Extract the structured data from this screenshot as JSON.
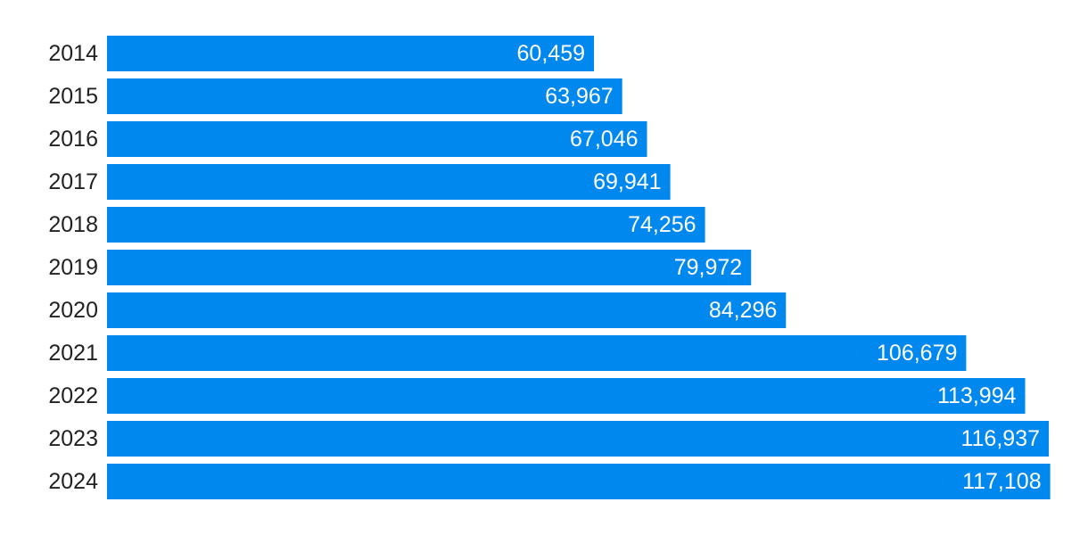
{
  "chart_data": {
    "type": "bar",
    "orientation": "horizontal",
    "title": "",
    "xlabel": "",
    "ylabel": "",
    "grid": false,
    "bar_color": "#0088ee",
    "categories": [
      "2014",
      "2015",
      "2016",
      "2017",
      "2018",
      "2019",
      "2020",
      "2021",
      "2022",
      "2023",
      "2024"
    ],
    "values": [
      60459,
      63967,
      67046,
      69941,
      74256,
      79972,
      84296,
      106679,
      113994,
      116937,
      117108
    ],
    "value_labels": [
      "60,459",
      "63,967",
      "67,046",
      "69,941",
      "74,256",
      "79,972",
      "84,296",
      "106,679",
      "113,994",
      "116,937",
      "117,108"
    ]
  }
}
